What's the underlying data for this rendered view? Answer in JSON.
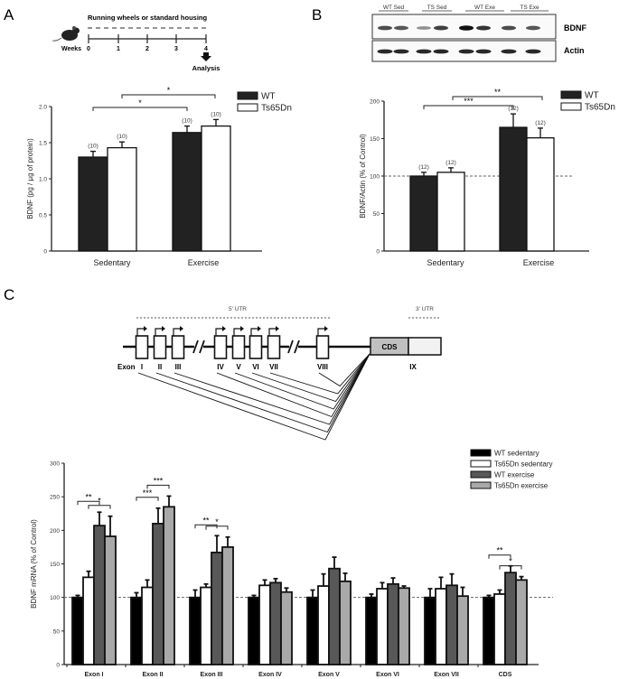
{
  "panels": {
    "a": "A",
    "b": "B",
    "c": "C"
  },
  "timeline": {
    "title": "Running wheels or standard housing",
    "weeks_label": "Weeks",
    "weeks": [
      "0",
      "1",
      "2",
      "3",
      "4"
    ],
    "analysis_label": "Analysis"
  },
  "blot": {
    "groups": [
      "WT Sed",
      "TS Sed",
      "WT Exe",
      "TS Exe"
    ],
    "rows": [
      "BDNF",
      "Actin"
    ]
  },
  "gene": {
    "utr5": "5' UTR",
    "utr3": "3' UTR",
    "exon_label": "Exon",
    "exons": [
      "I",
      "II",
      "III",
      "IV",
      "V",
      "VI",
      "VII",
      "VIII"
    ],
    "cds": "CDS",
    "exon9": "IX"
  },
  "colors": {
    "black": "#000000",
    "dark": "#222222",
    "gray_dark": "#585858",
    "gray_light": "#a9a9a9",
    "white": "#ffffff"
  },
  "chart_data": [
    {
      "type": "bar",
      "panel": "A",
      "ylabel": "BDNF (pg / µg of protein)",
      "ylim": [
        0,
        2.0
      ],
      "yticks": [
        "0",
        "0.5",
        "1.0",
        "1.5",
        "2.0"
      ],
      "categories": [
        "Sedentary",
        "Exercise"
      ],
      "legend": "top-right",
      "series": [
        {
          "name": "WT",
          "color": "#222222",
          "values": [
            1.3,
            1.64
          ],
          "errors": [
            0.08,
            0.09
          ],
          "n": [
            "(10)",
            "(10)"
          ]
        },
        {
          "name": "Ts65Dn",
          "color": "#ffffff",
          "values": [
            1.43,
            1.73
          ],
          "errors": [
            0.08,
            0.09
          ],
          "n": [
            "(10)",
            "(10)"
          ]
        }
      ],
      "significance": [
        {
          "from": "WT Sedentary",
          "to": "WT Exercise",
          "label": "*"
        },
        {
          "from": "Ts65Dn Sedentary",
          "to": "Ts65Dn Exercise",
          "label": "*"
        }
      ]
    },
    {
      "type": "bar",
      "panel": "B",
      "ylabel": "BDNF/Actin  (% of Control)",
      "ylim": [
        0,
        200
      ],
      "yticks": [
        "0",
        "50",
        "100",
        "150",
        "200"
      ],
      "reference_line": 100,
      "categories": [
        "Sedentary",
        "Exercise"
      ],
      "legend": "top-right",
      "series": [
        {
          "name": "WT",
          "color": "#222222",
          "values": [
            100,
            165
          ],
          "errors": [
            5,
            18
          ],
          "n": [
            "(12)",
            "(12)"
          ]
        },
        {
          "name": "Ts65Dn",
          "color": "#ffffff",
          "values": [
            105,
            151
          ],
          "errors": [
            6,
            13
          ],
          "n": [
            "(12)",
            "(12)"
          ]
        }
      ],
      "significance": [
        {
          "from": "WT Sedentary",
          "to": "WT Exercise",
          "label": "***"
        },
        {
          "from": "Ts65Dn Sedentary",
          "to": "Ts65Dn Exercise",
          "label": "**"
        }
      ]
    },
    {
      "type": "bar",
      "panel": "C",
      "ylabel": "BDNF mRNA (% of Control)",
      "ylim": [
        0,
        300
      ],
      "yticks": [
        "0",
        "50",
        "100",
        "150",
        "200",
        "250",
        "300"
      ],
      "reference_line": 100,
      "categories": [
        "Exon I",
        "Exon II",
        "Exon III",
        "Exon IV",
        "Exon V",
        "Exon VI",
        "Exon VII",
        "CDS"
      ],
      "legend": "top-right",
      "series": [
        {
          "name": "WT sedentary",
          "color": "#000000",
          "values": [
            100,
            100,
            100,
            100,
            100,
            100,
            100,
            100
          ],
          "errors": [
            3,
            7,
            11,
            3,
            11,
            5,
            13,
            3
          ]
        },
        {
          "name": "Ts65Dn sedentary",
          "color": "#ffffff",
          "values": [
            130,
            115,
            115,
            118,
            117,
            113,
            113,
            105
          ],
          "errors": [
            9,
            11,
            5,
            8,
            18,
            9,
            17,
            6
          ]
        },
        {
          "name": "WT exercise",
          "color": "#585858",
          "values": [
            207,
            210,
            167,
            122,
            143,
            120,
            118,
            137
          ],
          "errors": [
            20,
            23,
            25,
            6,
            17,
            9,
            17,
            10
          ]
        },
        {
          "name": "Ts65Dn exercise",
          "color": "#a9a9a9",
          "values": [
            191,
            235,
            175,
            108,
            124,
            114,
            102,
            126
          ],
          "errors": [
            30,
            16,
            15,
            6,
            12,
            3,
            13,
            5
          ]
        }
      ],
      "significance": [
        {
          "category": "Exon I",
          "pair": "sedentary-exercise WT",
          "label": "**"
        },
        {
          "category": "Exon I",
          "pair": "sedentary-exercise Ts65Dn",
          "label": "*"
        },
        {
          "category": "Exon II",
          "pair": "sedentary-exercise WT",
          "label": "***"
        },
        {
          "category": "Exon II",
          "pair": "sedentary-exercise Ts65Dn",
          "label": "***"
        },
        {
          "category": "Exon III",
          "pair": "sedentary-exercise WT",
          "label": "**"
        },
        {
          "category": "Exon III",
          "pair": "sedentary-exercise Ts65Dn",
          "label": "*"
        },
        {
          "category": "CDS",
          "pair": "sedentary-exercise WT",
          "label": "**"
        },
        {
          "category": "CDS",
          "pair": "sedentary-exercise Ts65Dn",
          "label": "*"
        }
      ]
    }
  ]
}
